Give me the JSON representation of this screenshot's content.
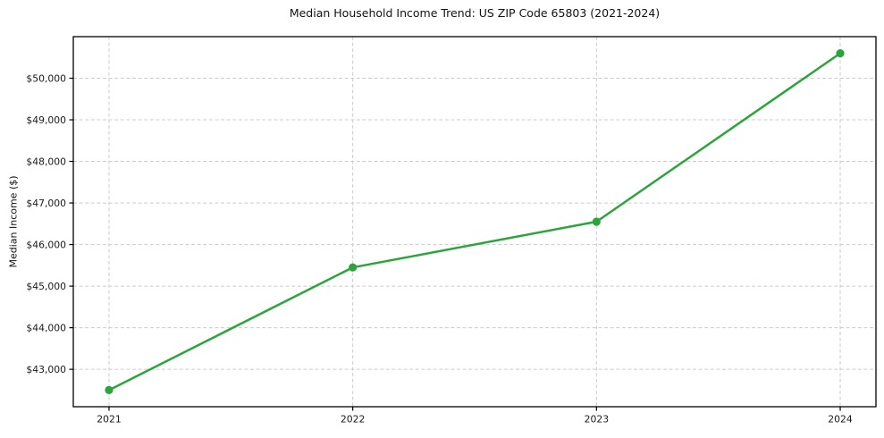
{
  "chart_data": {
    "type": "line",
    "title": "Median Household Income Trend: US ZIP Code 65803 (2021-2024)",
    "xlabel": "",
    "ylabel": "Median Income ($)",
    "categories": [
      "2021",
      "2022",
      "2023",
      "2024"
    ],
    "values": [
      42500,
      45450,
      46550,
      50600
    ],
    "y_ticks": [
      43000,
      44000,
      45000,
      46000,
      47000,
      48000,
      49000,
      50000
    ],
    "y_tick_labels": [
      "$43,000",
      "$44,000",
      "$45,000",
      "$46,000",
      "$47,000",
      "$48,000",
      "$49,000",
      "$50,000"
    ],
    "ylim": [
      42100,
      51000
    ],
    "grid": "dashed",
    "legend_position": "none",
    "line_color": "#2ca43c",
    "marker": "circle",
    "grid_color": "#cccccc",
    "axis_color": "#000000",
    "background": "#ffffff"
  }
}
